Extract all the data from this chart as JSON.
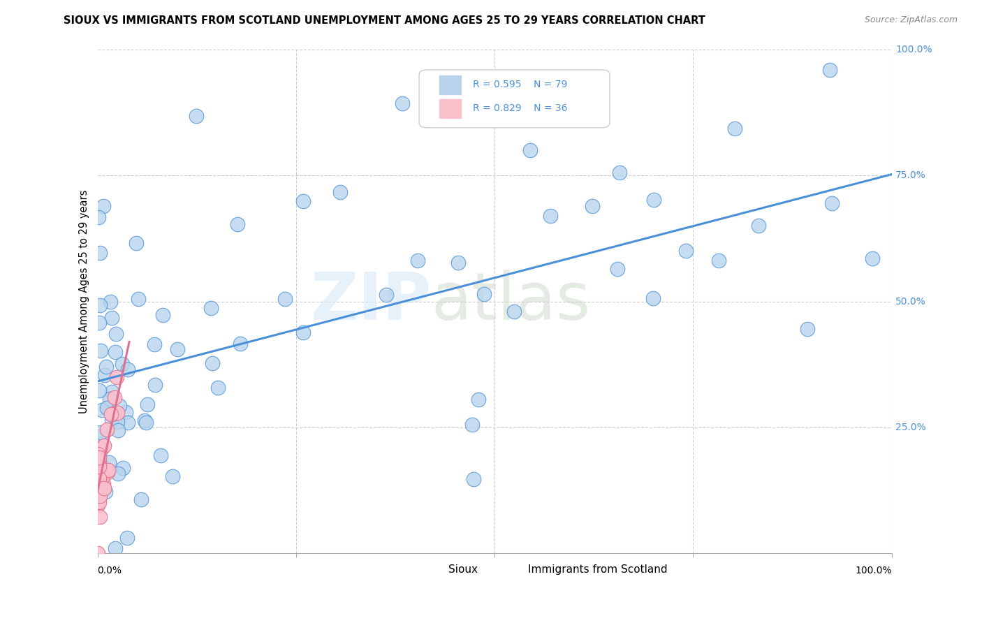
{
  "title": "SIOUX VS IMMIGRANTS FROM SCOTLAND UNEMPLOYMENT AMONG AGES 25 TO 29 YEARS CORRELATION CHART",
  "source": "Source: ZipAtlas.com",
  "ylabel": "Unemployment Among Ages 25 to 29 years",
  "sioux_color": "#b8d4ed",
  "scotland_color": "#f9c0cc",
  "sioux_line_color": "#4a90d9",
  "scotland_line_color": "#e07090",
  "R_sioux": 0.595,
  "N_sioux": 79,
  "R_scotland": 0.829,
  "N_scotland": 36,
  "legend_sioux": "Sioux",
  "legend_scotland": "Immigrants from Scotland",
  "watermark_zip": "ZIP",
  "watermark_atlas": "atlas",
  "background_color": "#ffffff",
  "grid_color": "#cccccc",
  "tick_color": "#4a90d9",
  "ytick_labels": [
    "25.0%",
    "50.0%",
    "75.0%",
    "100.0%"
  ],
  "ytick_values": [
    0.25,
    0.5,
    0.75,
    1.0
  ]
}
